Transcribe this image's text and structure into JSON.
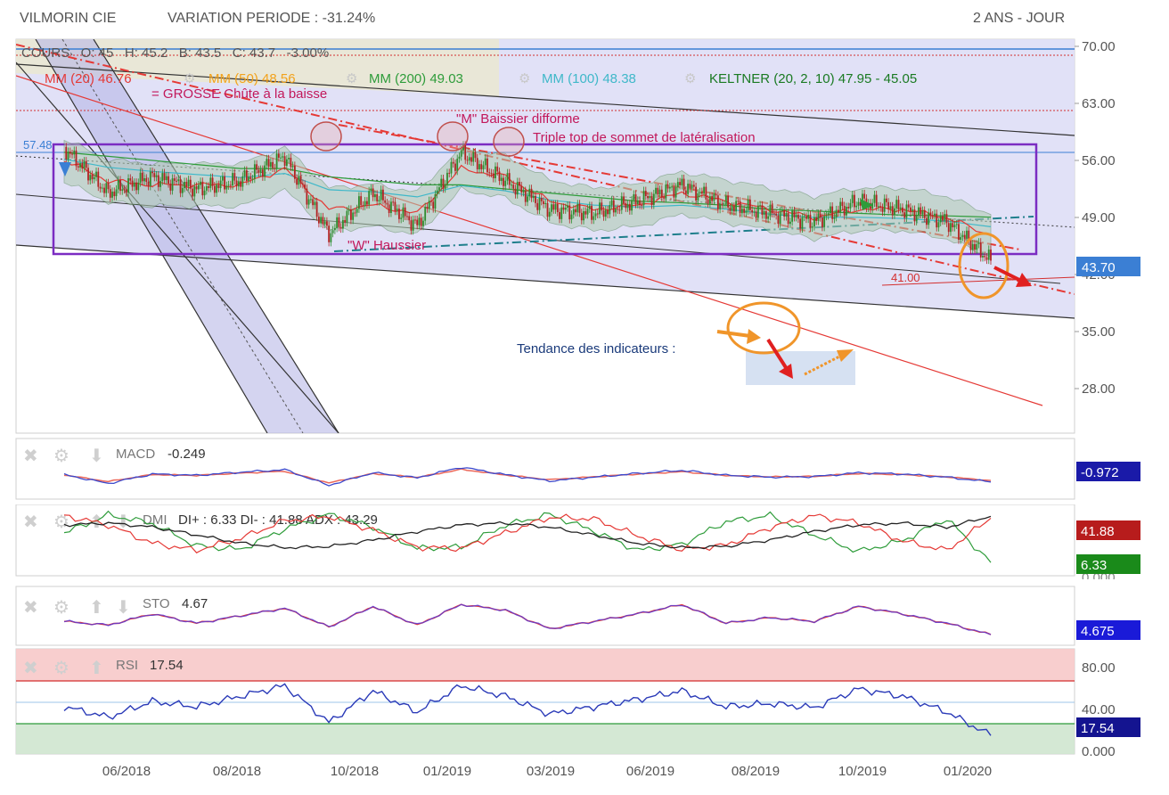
{
  "header": {
    "ticker": "VILMORIN CIE",
    "variation": "VARIATION PERIODE : -31.24%",
    "period": "2 ANS - JOUR"
  },
  "colors": {
    "mm20": "#e53935",
    "mm50": "#f2a21c",
    "mm200": "#2e9c3a",
    "mm100": "#3fb8c9",
    "keltner": "#1a7a22",
    "price_up": "#2e8b2e",
    "price_down": "#b22222",
    "channel_fill": "#dcdcf6",
    "box": "#7b2cc2",
    "annotation": "#c2185b",
    "arrow_orange": "#f0952a",
    "arrow_red": "#e02020",
    "trend_text": "#1a3a7a"
  },
  "legend": {
    "ohlc": "COURS   O: 45   H: 45.2   B: 43.5   C: 43.7   -3.00%",
    "mm20": "MM (20) 46.76",
    "mm50": "MM (50) 48.56",
    "mm200": "MM (200) 49.03",
    "mm100": "MM (100) 48.38",
    "keltner": "KELTNER (20, 2, 10) 47.95 - 45.05"
  },
  "annotations": {
    "grosse_chute": "= GROSSE Chûte à la baisse",
    "m_baissier": "\"M\" Baissier difforme",
    "triple_top": "Triple top de sommet de latéralisation",
    "w_haussier": "\"W\" Haussier",
    "level_5748": "57.48",
    "level_41": "41.00",
    "tendance": "Tendance des indicateurs :"
  },
  "price_axis": {
    "ticks": [
      "70.00",
      "63.00",
      "56.00",
      "49.00",
      "42.00",
      "35.00",
      "28.00"
    ],
    "last": "43.70"
  },
  "x_axis": {
    "labels": [
      "06/2018",
      "08/2018",
      "10/2018",
      "01/2019",
      "03/2019",
      "06/2019",
      "08/2019",
      "10/2019",
      "01/2020"
    ]
  },
  "macd": {
    "label": "MACD",
    "value": "-0.249",
    "badge": "-0.972"
  },
  "dmi": {
    "label": "DMI",
    "value": "DI+ : 6.33 DI- : 41.88 ADX : 43.29",
    "badge_di_minus": "41.88",
    "badge_di_plus": "6.33",
    "axis": "0.000"
  },
  "sto": {
    "label": "STO",
    "value": "4.67",
    "badge": "4.675"
  },
  "rsi": {
    "label": "RSI",
    "value": "17.54",
    "badge": "17.54",
    "ticks": [
      "80.00",
      "40.00",
      "0.000"
    ]
  },
  "chart_data": {
    "type": "line",
    "ylim": [
      24,
      72
    ],
    "x": [
      "04/2018",
      "05/2018",
      "06/2018",
      "07/2018",
      "08/2018",
      "09/2018",
      "10/2018",
      "11/2018",
      "12/2018",
      "01/2019",
      "02/2019",
      "03/2019",
      "04/2019",
      "05/2019",
      "06/2019",
      "07/2019",
      "08/2019",
      "09/2019",
      "10/2019",
      "11/2019",
      "12/2019",
      "01/2020"
    ],
    "series": [
      {
        "name": "COURS",
        "values": [
          57.5,
          52.0,
          54.0,
          52.5,
          53.5,
          56.5,
          47.0,
          52.0,
          48.0,
          57.0,
          53.5,
          50.0,
          49.5,
          51.0,
          53.0,
          50.5,
          49.5,
          48.5,
          51.0,
          50.0,
          48.5,
          43.7
        ]
      },
      {
        "name": "MM (20)",
        "values": [
          56.0,
          53.5,
          53.0,
          53.0,
          53.0,
          55.0,
          50.0,
          50.5,
          49.5,
          55.0,
          54.0,
          51.0,
          50.0,
          50.5,
          52.0,
          51.0,
          50.0,
          49.0,
          50.0,
          50.0,
          49.0,
          46.76
        ]
      },
      {
        "name": "MM (200)",
        "values": [
          57.0,
          56.5,
          56.0,
          55.5,
          55.0,
          55.0,
          54.0,
          53.5,
          53.0,
          53.0,
          52.5,
          52.0,
          51.5,
          51.0,
          50.8,
          50.5,
          50.0,
          49.8,
          49.5,
          49.3,
          49.2,
          49.03
        ]
      }
    ],
    "indicators": {
      "macd": [
        0.2,
        -1.2,
        0.3,
        0.1,
        0.6,
        1.0,
        -1.5,
        0.5,
        -0.3,
        1.4,
        0.2,
        -0.8,
        -0.2,
        0.4,
        0.9,
        0.1,
        -0.2,
        -0.1,
        0.5,
        0.3,
        -0.2,
        -0.972
      ],
      "sto": [
        40,
        30,
        60,
        35,
        55,
        75,
        25,
        80,
        30,
        85,
        70,
        20,
        40,
        60,
        85,
        35,
        50,
        40,
        80,
        60,
        35,
        4.675
      ],
      "rsi": [
        45,
        35,
        50,
        45,
        55,
        65,
        30,
        60,
        40,
        65,
        55,
        38,
        45,
        52,
        60,
        45,
        48,
        44,
        62,
        55,
        40,
        17.54
      ]
    }
  }
}
